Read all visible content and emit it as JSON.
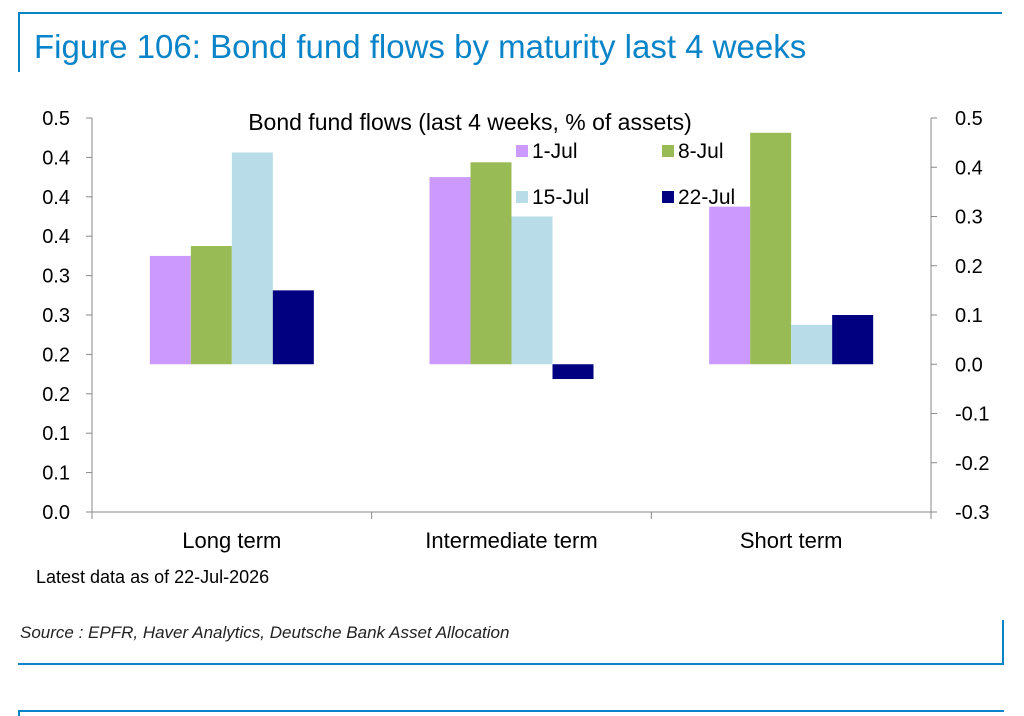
{
  "figure": {
    "title": "Figure 106: Bond fund flows by maturity last 4 weeks",
    "note": "Latest data as of 22-Jul-2026",
    "source": "Source : EPFR, Haver Analytics, Deutsche Bank Asset Allocation",
    "accent_color": "#0a84c9"
  },
  "chart_data": {
    "type": "bar",
    "title": "Bond fund flows (last 4 weeks, % of assets)",
    "categories": [
      "Long term",
      "Intermediate term",
      "Short term"
    ],
    "series": [
      {
        "name": "1-Jul",
        "color": "#cc99ff",
        "values": [
          0.22,
          0.38,
          0.32
        ]
      },
      {
        "name": "8-Jul",
        "color": "#99bb55",
        "values": [
          0.24,
          0.41,
          0.47
        ]
      },
      {
        "name": "15-Jul",
        "color": "#b8dde8",
        "values": [
          0.43,
          0.3,
          0.08
        ]
      },
      {
        "name": "22-Jul",
        "color": "#000080",
        "values": [
          0.15,
          -0.03,
          0.1
        ]
      }
    ],
    "left_axis": {
      "ylim": [
        0,
        0.5
      ],
      "tick_values": [
        0,
        0.05,
        0.1,
        0.15,
        0.2,
        0.25,
        0.3,
        0.35,
        0.4,
        0.45,
        0.5
      ],
      "tick_labels": [
        "0.0",
        "0.1",
        "0.1",
        "0.2",
        "0.2",
        "0.3",
        "0.3",
        "0.4",
        "0.4",
        "0.4",
        "0.5"
      ]
    },
    "right_axis": {
      "ylim": [
        -0.3,
        0.5
      ],
      "tick_values": [
        -0.3,
        -0.2,
        -0.1,
        0.0,
        0.1,
        0.2,
        0.3,
        0.4,
        0.5
      ],
      "tick_labels": [
        "-0.3",
        "-0.2",
        "-0.1",
        "0.0",
        "0.1",
        "0.2",
        "0.3",
        "0.4",
        "0.5"
      ]
    },
    "bars_plotted_on": "right_axis",
    "grid": false,
    "legend_position": "top-right"
  }
}
